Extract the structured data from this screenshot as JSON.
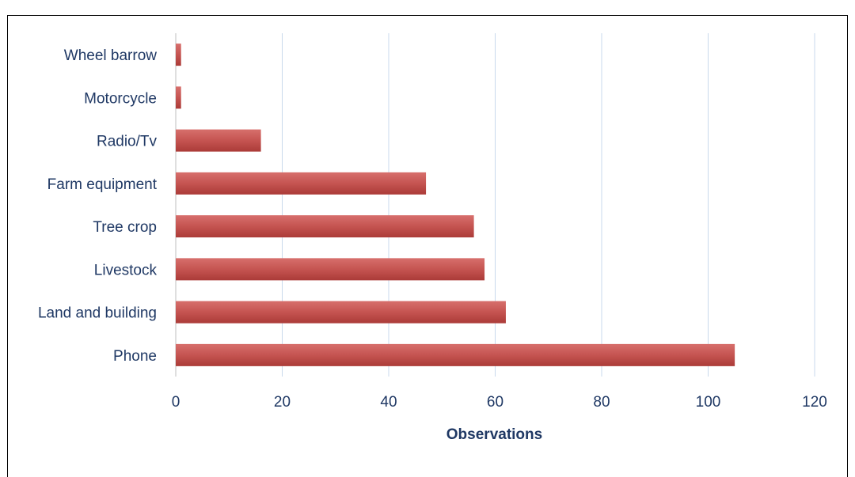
{
  "chart_data": {
    "type": "bar",
    "orientation": "horizontal",
    "categories": [
      "Phone",
      "Land and building",
      "Livestock",
      "Tree crop",
      "Farm equipment",
      "Radio/Tv",
      "Motorcycle",
      "Wheel barrow"
    ],
    "values": [
      105,
      62,
      58,
      56,
      47,
      16,
      1,
      1
    ],
    "xlabel": "Observations",
    "ylabel": "",
    "title": "",
    "xlim": [
      0,
      120
    ],
    "xticks": [
      "0",
      "20",
      "40",
      "60",
      "80",
      "100",
      "120"
    ],
    "grid": "vertical",
    "legend": "none",
    "colors": {
      "bar": "#c0504d",
      "bar_light": "#d9726f",
      "bar_dark": "#a83a37",
      "text": "#1f3864",
      "grid": "#c9d9ec"
    }
  }
}
